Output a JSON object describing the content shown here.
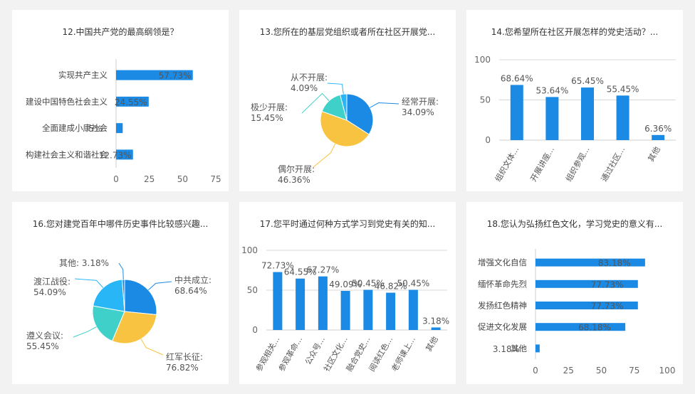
{
  "colors": {
    "bar": "#1a8ae5",
    "pie": [
      "#1a8ae5",
      "#f7c340",
      "#3fd1c9",
      "#29b6f6"
    ],
    "grid": "#d8d8d8"
  },
  "chart_data": [
    {
      "type": "bar",
      "orientation": "horizontal",
      "title": "12.中国共产党的最高纲领是？",
      "categories": [
        "实现共产主义",
        "建设中国特色社会主义",
        "全面建成小康社会",
        "构建社会主义和谐社会"
      ],
      "values": [
        57.73,
        24.55,
        5,
        12.73
      ],
      "labels": [
        "57.73%",
        "24.55%",
        "5%",
        "12.73%"
      ],
      "ticks": [
        "0",
        "25",
        "50",
        "75"
      ],
      "xlim": [
        0,
        75
      ]
    },
    {
      "type": "pie",
      "title": "13.您所在的基层党组织或者所在社区开展党...",
      "slices": [
        {
          "name": "经常开展",
          "value": 34.09,
          "label": "34.09%"
        },
        {
          "name": "偶尔开展",
          "value": 46.36,
          "label": "46.36%"
        },
        {
          "name": "极少开展",
          "value": 15.45,
          "label": "15.45%"
        },
        {
          "name": "从不开展",
          "value": 4.09,
          "label": "4.09%"
        }
      ]
    },
    {
      "type": "bar",
      "orientation": "vertical",
      "title": "14.您希望所在社区开展怎样的党史活动？...",
      "categories": [
        "组织文体...",
        "开展讲座...",
        "组织参观...",
        "通过社区...",
        "其他"
      ],
      "values": [
        68.64,
        53.64,
        65.45,
        55.45,
        6.36
      ],
      "labels": [
        "68.64%",
        "53.64%",
        "65.45%",
        "55.45%",
        "6.36%"
      ],
      "ticks": [
        "0",
        "50",
        "100"
      ],
      "ylim": [
        0,
        100
      ]
    },
    {
      "type": "pie",
      "title": "16.您对建党百年中哪件历史事件比较感兴趣...",
      "slices": [
        {
          "name": "中共成立",
          "value": 68.64,
          "label": "68.64%"
        },
        {
          "name": "红军长征",
          "value": 76.82,
          "label": "76.82%"
        },
        {
          "name": "遵义会议",
          "value": 55.45,
          "label": "55.45%"
        },
        {
          "name": "渡江战役",
          "value": 54.09,
          "label": "54.09%"
        },
        {
          "name": "其他",
          "value": 3.18,
          "label": "3.18%"
        }
      ]
    },
    {
      "type": "bar",
      "orientation": "vertical",
      "title": "17.您平时通过何种方式学习到党史有关的知...",
      "categories": [
        "参观相关...",
        "参观革命...",
        "公众号...",
        "社区文化...",
        "融合党史...",
        "阅读红色...",
        "老师课上...",
        "其他"
      ],
      "values": [
        72.73,
        64.55,
        67.27,
        49.09,
        50.45,
        46.82,
        50.45,
        3.18
      ],
      "labels": [
        "72.73%",
        "64.55%",
        "67.27%",
        "49.09%",
        "50.45%",
        "46.82%",
        "50.45%",
        "3.18%"
      ],
      "ticks": [
        "0",
        "50",
        "100"
      ],
      "ylim": [
        0,
        100
      ]
    },
    {
      "type": "bar",
      "orientation": "horizontal",
      "title": "18.您认为弘扬红色文化，学习党史的意义有...",
      "categories": [
        "增强文化自信",
        "缅怀革命先烈",
        "发扬红色精神",
        "促进文化发展",
        "其他"
      ],
      "values": [
        83.18,
        77.73,
        77.73,
        68.18,
        3.18
      ],
      "labels": [
        "83.18%",
        "77.73%",
        "77.73%",
        "68.18%",
        "3.18%"
      ],
      "ticks": [
        "0",
        "25",
        "50",
        "75",
        "100"
      ],
      "xlim": [
        0,
        100
      ]
    }
  ]
}
